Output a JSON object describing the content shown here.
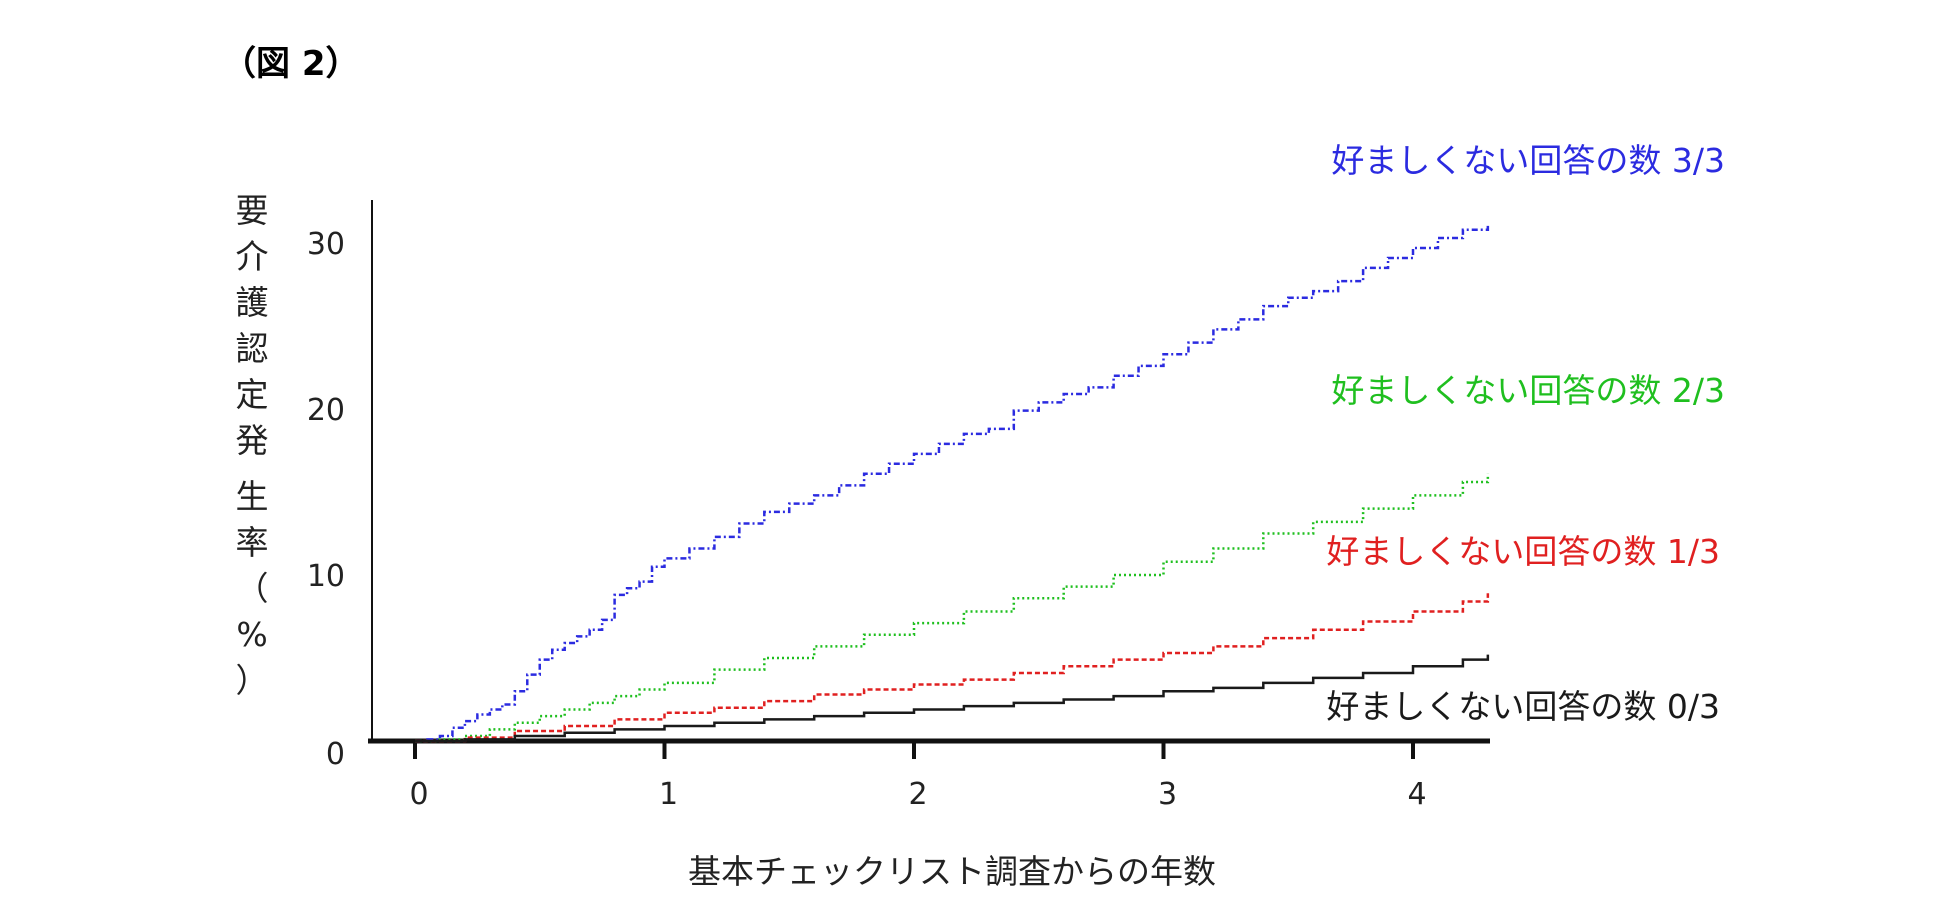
{
  "figure_label": "（図 2）",
  "chart_data": {
    "type": "line",
    "xlabel": "基本チェックリスト調査からの年数",
    "ylabel": "要介護認定発生率（%）",
    "x_ticks": [
      "0",
      "1",
      "2",
      "3",
      "4"
    ],
    "y_ticks": [
      "0",
      "10",
      "20",
      "30"
    ],
    "xlim": [
      0,
      4.3
    ],
    "ylim": [
      0,
      32
    ],
    "series": [
      {
        "name": "好ましくない回答の数 3/3",
        "color": "#2b2be0",
        "dash": "6,3,2,3",
        "x": [
          0,
          0.05,
          0.1,
          0.15,
          0.2,
          0.25,
          0.3,
          0.35,
          0.4,
          0.45,
          0.5,
          0.55,
          0.6,
          0.65,
          0.7,
          0.75,
          0.8,
          0.85,
          0.9,
          0.95,
          1.0,
          1.1,
          1.2,
          1.3,
          1.4,
          1.5,
          1.6,
          1.7,
          1.8,
          1.9,
          2.0,
          2.1,
          2.2,
          2.3,
          2.4,
          2.5,
          2.6,
          2.7,
          2.8,
          2.9,
          3.0,
          3.1,
          3.2,
          3.3,
          3.4,
          3.5,
          3.6,
          3.7,
          3.8,
          3.9,
          4.0,
          4.1,
          4.2,
          4.3
        ],
        "y": [
          0,
          0.1,
          0.3,
          0.8,
          1.2,
          1.6,
          1.9,
          2.2,
          3.0,
          4.0,
          4.9,
          5.5,
          5.9,
          6.3,
          6.7,
          7.3,
          8.8,
          9.2,
          9.6,
          10.5,
          11.0,
          11.6,
          12.3,
          13.1,
          13.8,
          14.3,
          14.8,
          15.4,
          16.1,
          16.7,
          17.3,
          17.9,
          18.5,
          18.8,
          19.9,
          20.4,
          20.9,
          21.3,
          22.0,
          22.6,
          23.3,
          24.0,
          24.8,
          25.4,
          26.2,
          26.7,
          27.1,
          27.7,
          28.5,
          29.1,
          29.7,
          30.3,
          30.8,
          31.2
        ]
      },
      {
        "name": "好ましくない回答の数 2/3",
        "color": "#1fbf1f",
        "dash": "2,3",
        "x": [
          0,
          0.1,
          0.2,
          0.3,
          0.4,
          0.5,
          0.6,
          0.7,
          0.8,
          0.9,
          1.0,
          1.2,
          1.4,
          1.6,
          1.8,
          2.0,
          2.2,
          2.4,
          2.6,
          2.8,
          3.0,
          3.2,
          3.4,
          3.6,
          3.8,
          4.0,
          4.2,
          4.3
        ],
        "y": [
          0,
          0.1,
          0.3,
          0.7,
          1.1,
          1.5,
          1.9,
          2.3,
          2.7,
          3.1,
          3.5,
          4.3,
          5.0,
          5.7,
          6.4,
          7.1,
          7.8,
          8.6,
          9.3,
          10.0,
          10.8,
          11.6,
          12.5,
          13.2,
          14.0,
          14.8,
          15.6,
          16.1
        ]
      },
      {
        "name": "好ましくない回答の数 1/3",
        "color": "#e02020",
        "dash": "5,3",
        "x": [
          0,
          0.2,
          0.4,
          0.6,
          0.8,
          1.0,
          1.2,
          1.4,
          1.6,
          1.8,
          2.0,
          2.2,
          2.4,
          2.6,
          2.8,
          3.0,
          3.2,
          3.4,
          3.6,
          3.8,
          4.0,
          4.2,
          4.3
        ],
        "y": [
          0,
          0.2,
          0.6,
          0.9,
          1.3,
          1.7,
          2.0,
          2.4,
          2.8,
          3.1,
          3.4,
          3.7,
          4.1,
          4.5,
          4.9,
          5.3,
          5.7,
          6.2,
          6.7,
          7.2,
          7.8,
          8.4,
          8.9
        ]
      },
      {
        "name": "好ましくない回答の数 0/3",
        "color": "#1a1a1a",
        "dash": "",
        "x": [
          0,
          0.2,
          0.4,
          0.6,
          0.8,
          1.0,
          1.2,
          1.4,
          1.6,
          1.8,
          2.0,
          2.2,
          2.4,
          2.6,
          2.8,
          3.0,
          3.2,
          3.4,
          3.6,
          3.8,
          4.0,
          4.2,
          4.3
        ],
        "y": [
          0,
          0.1,
          0.3,
          0.5,
          0.7,
          0.9,
          1.1,
          1.3,
          1.5,
          1.7,
          1.9,
          2.1,
          2.3,
          2.5,
          2.7,
          3.0,
          3.2,
          3.5,
          3.8,
          4.1,
          4.5,
          4.9,
          5.2
        ]
      }
    ],
    "grid": false,
    "legend": "right-of-lines"
  }
}
